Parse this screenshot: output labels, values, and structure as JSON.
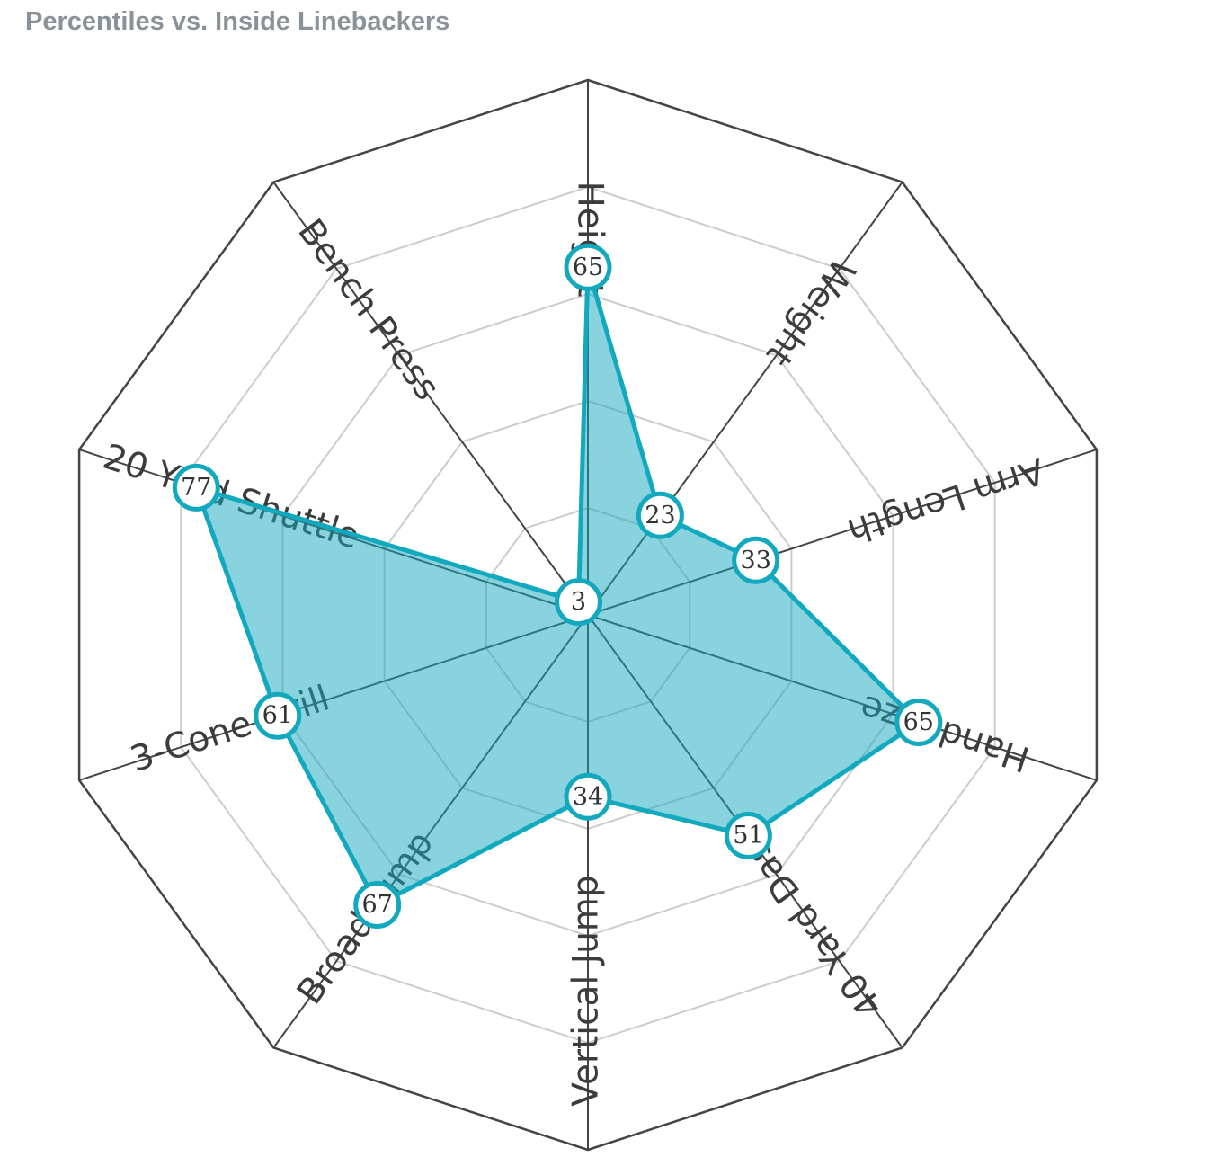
{
  "chart_data": {
    "type": "radar",
    "title": "Percentiles vs. Inside Linebackers",
    "categories": [
      "Height",
      "Weight",
      "Arm Length",
      "Hand Size",
      "40 Yard Dash",
      "Vertical Jump",
      "Broad Jump",
      "3-Cone Drill",
      "20 Yard Shuttle",
      "Bench Press"
    ],
    "values": [
      65,
      23,
      33,
      65,
      51,
      34,
      67,
      61,
      77,
      3
    ],
    "range": [
      0,
      100
    ],
    "grid_levels": [
      20,
      40,
      60,
      80
    ],
    "colors": {
      "line": "#12a8be",
      "fill": "#12a8be",
      "outer_ring": "#444444",
      "grid": "#cccccc",
      "spoke": "#444444"
    }
  }
}
